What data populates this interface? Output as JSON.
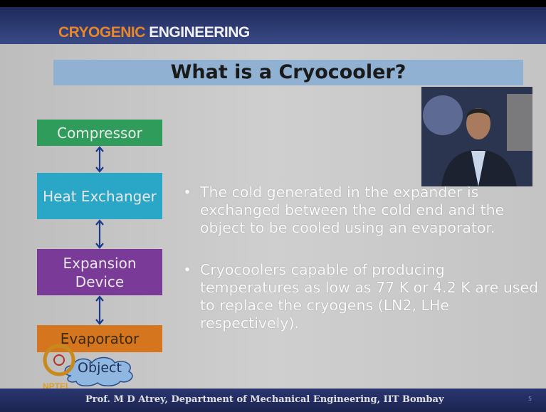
{
  "header": {
    "course_part1": "CRYOGENIC",
    "course_part2": "ENGINEERING"
  },
  "slide": {
    "title": "What is a Cryocooler?",
    "nodes": [
      {
        "label": "Compressor"
      },
      {
        "label": "Heat Exchanger"
      },
      {
        "label": "Expansion Device"
      },
      {
        "label": "Evaporator"
      },
      {
        "label": "Object"
      }
    ],
    "bullets": [
      "The cold generated in the expander is exchanged between the cold end and the object to be cooled using an evaporator.",
      "Cryocoolers capable of producing temperatures as low as 77 K or 4.2 K are used to replace the cryogens (LN2, LHe respectively)."
    ]
  },
  "logo": "NPTEL",
  "footer": {
    "text": "Prof. M D Atrey, Department of Mechanical Engineering, IIT Bombay",
    "page": "5"
  }
}
